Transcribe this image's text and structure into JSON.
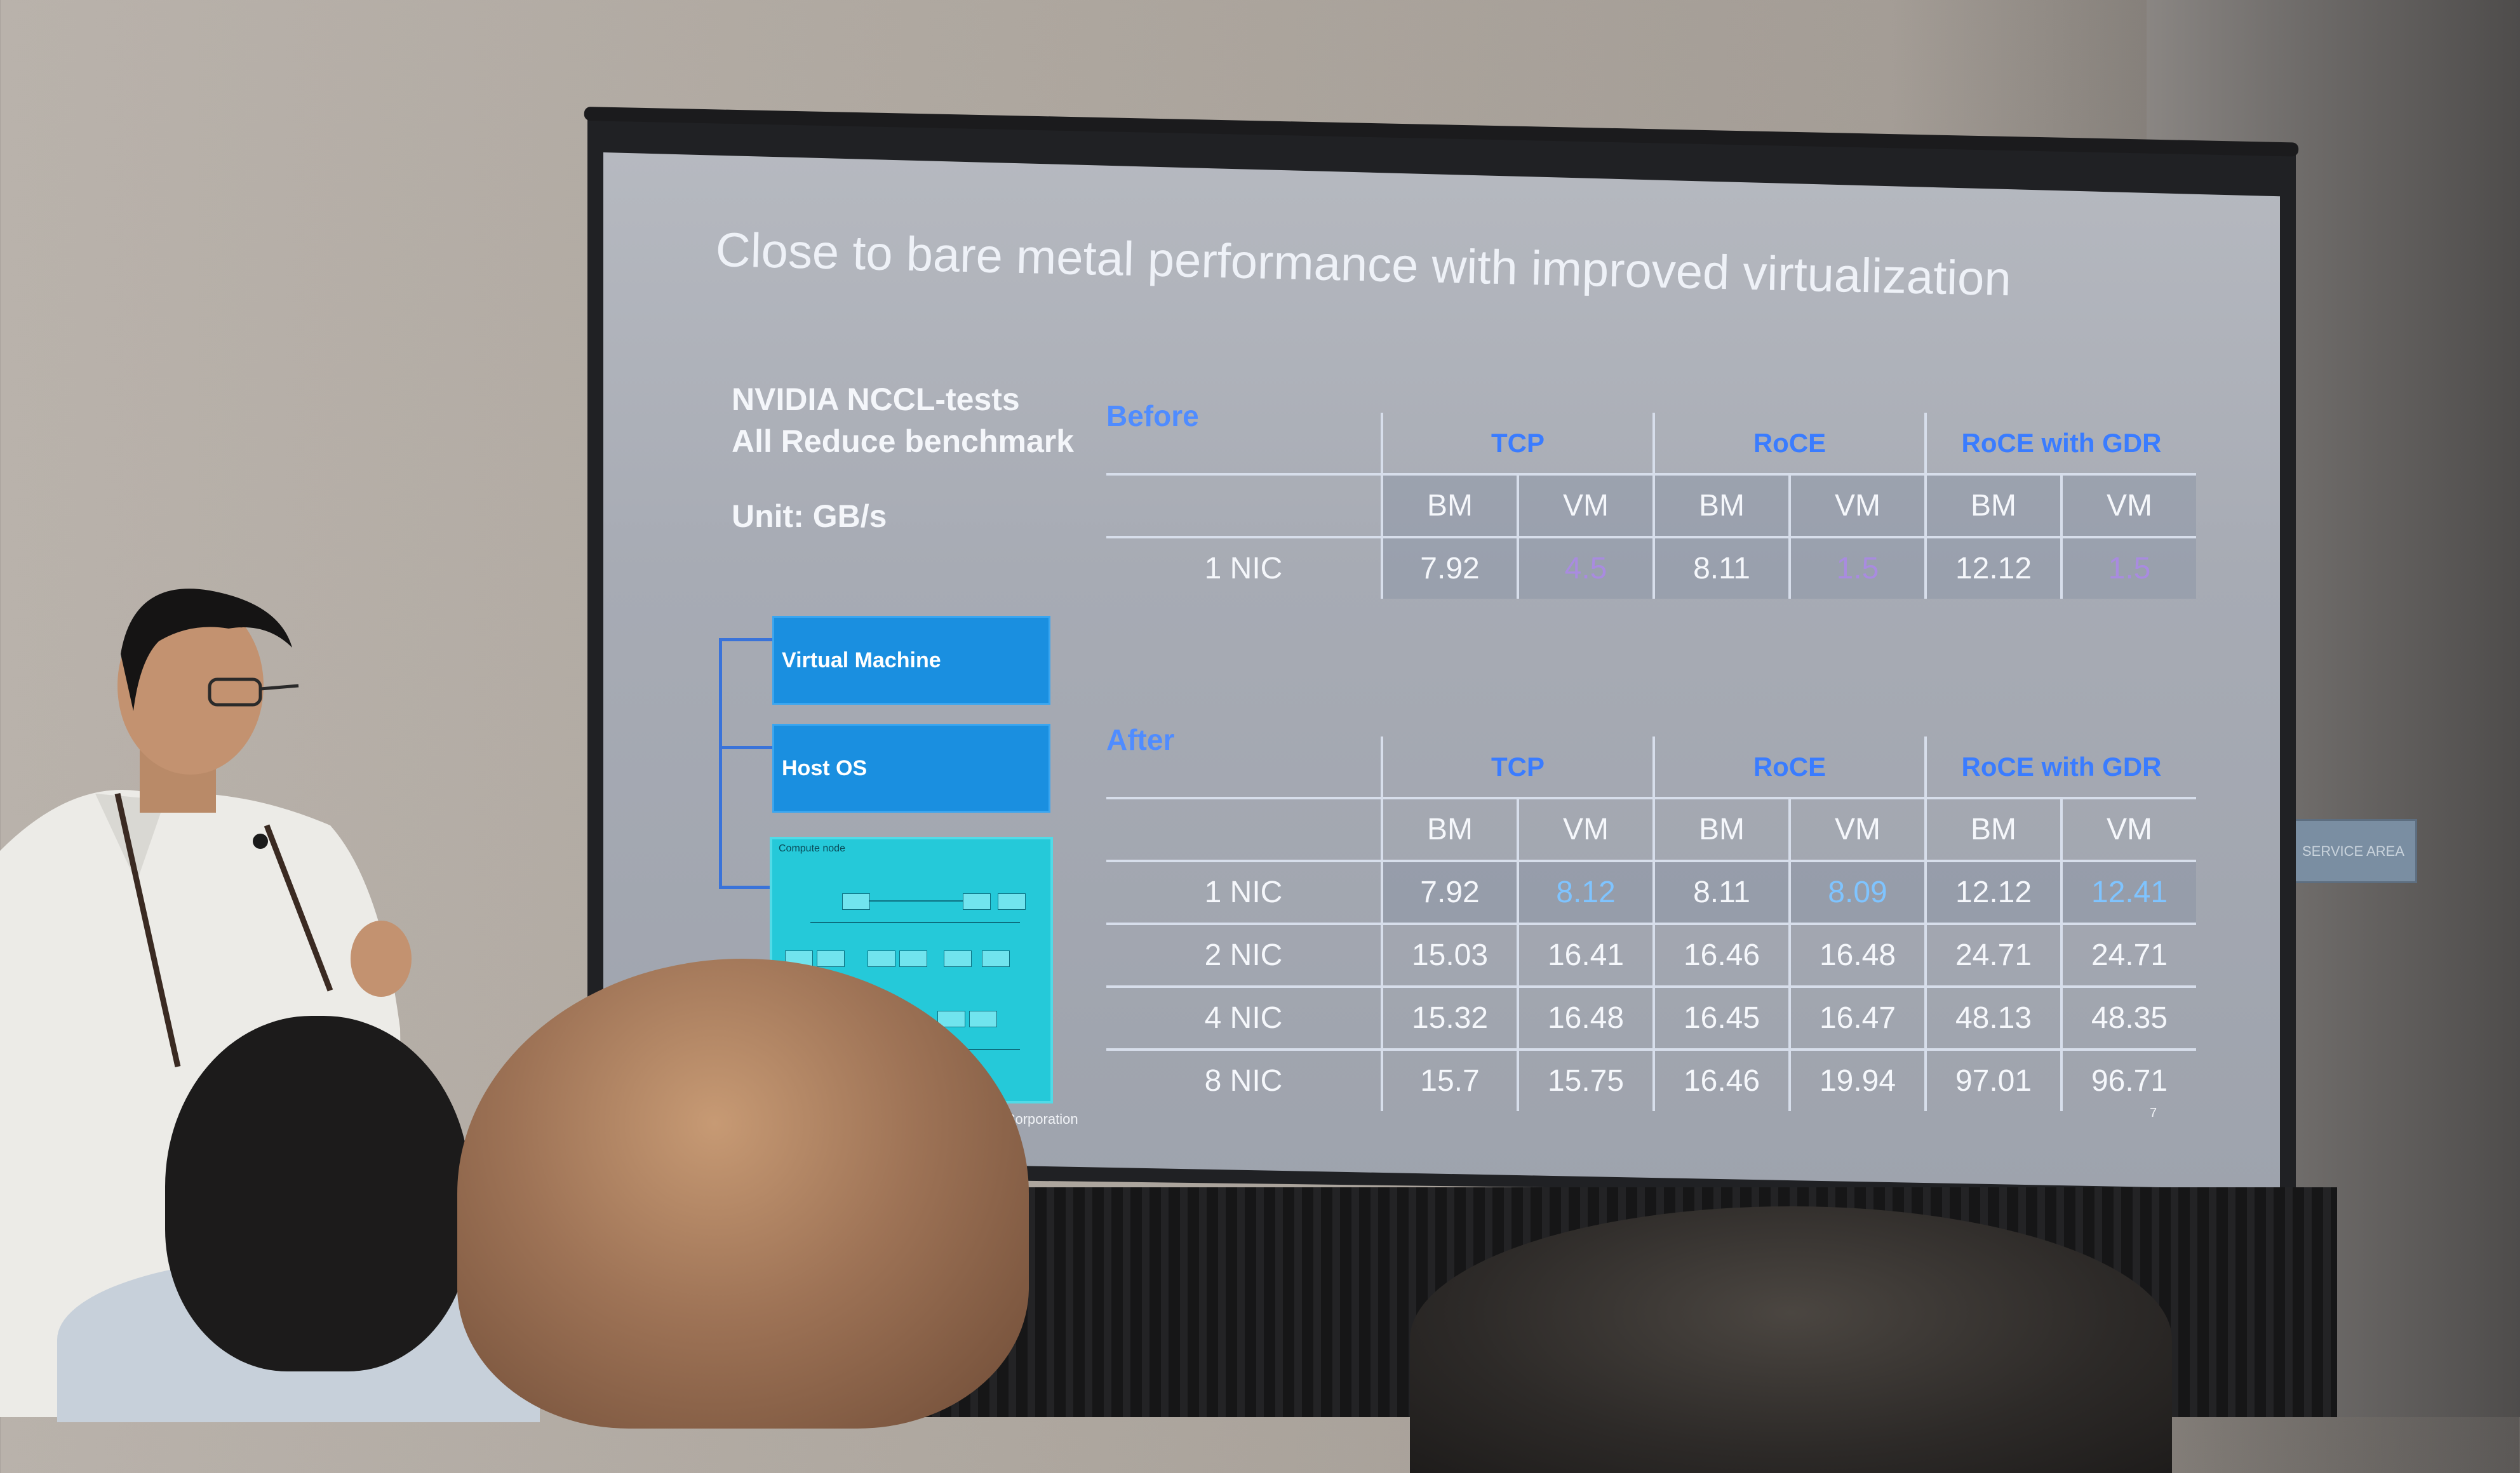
{
  "slide": {
    "title": "Close to bare metal performance with improved virtualization",
    "benchmark_line1": "NVIDIA NCCL-tests",
    "benchmark_line2": "All Reduce benchmark",
    "unit": "Unit: GB/s",
    "diagram": {
      "vm_label": "Virtual Machine",
      "host_label": "Host OS",
      "compute_label": "Compute node"
    },
    "copyright": "© 2023 IBM Corporation",
    "page_number": "7"
  },
  "before": {
    "label": "Before",
    "groups": [
      "TCP",
      "RoCE",
      "RoCE with GDR"
    ],
    "subheaders": [
      "BM",
      "VM",
      "BM",
      "VM",
      "BM",
      "VM"
    ],
    "rows": [
      {
        "label": "1 NIC",
        "values": [
          "7.92",
          "4.5",
          "8.11",
          "1.5",
          "12.12",
          "1.5"
        ]
      }
    ]
  },
  "after": {
    "label": "After",
    "groups": [
      "TCP",
      "RoCE",
      "RoCE with GDR"
    ],
    "subheaders": [
      "BM",
      "VM",
      "BM",
      "VM",
      "BM",
      "VM"
    ],
    "rows": [
      {
        "label": "1 NIC",
        "values": [
          "7.92",
          "8.12",
          "8.11",
          "8.09",
          "12.12",
          "12.41"
        ]
      },
      {
        "label": "2 NIC",
        "values": [
          "15.03",
          "16.41",
          "16.46",
          "16.48",
          "24.71",
          "24.71"
        ]
      },
      {
        "label": "4 NIC",
        "values": [
          "15.32",
          "16.48",
          "16.45",
          "16.47",
          "48.13",
          "48.35"
        ]
      },
      {
        "label": "8 NIC",
        "values": [
          "15.7",
          "15.75",
          "16.46",
          "19.94",
          "97.01",
          "96.71"
        ]
      }
    ]
  },
  "room": {
    "wall_sign": "SERVICE AREA"
  },
  "colors": {
    "accent_blue": "#3a7cff",
    "vm_box": "#1a8fe0",
    "compute_box": "#25c9d9",
    "before_vm_values": "#a98be0",
    "after_vm_values": "#7fc4ff"
  }
}
